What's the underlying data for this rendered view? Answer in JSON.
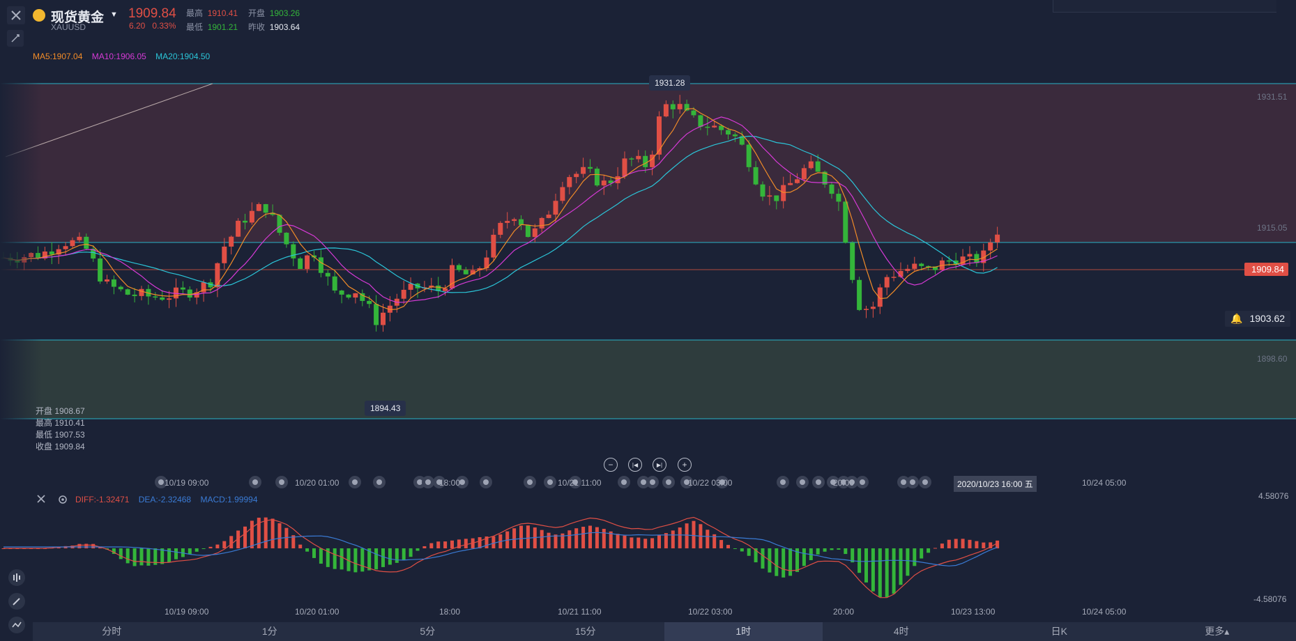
{
  "header": {
    "title": "现货黄金",
    "symbol": "XAUUSD",
    "price": "1909.84",
    "change": "6.20",
    "change_pct": "0.33%",
    "high_label": "最高",
    "high": "1910.41",
    "open_label": "开盘",
    "open": "1903.26",
    "low_label": "最低",
    "low": "1901.21",
    "prev_label": "昨收",
    "prev": "1903.64"
  },
  "ma": {
    "ma5": "MA5:1907.04",
    "ma10": "MA10:1906.05",
    "ma20": "MA20:1904.50",
    "colors": {
      "ma5": "#f28c28",
      "ma10": "#d63ad6",
      "ma20": "#2bc5d8"
    }
  },
  "main_axis": {
    "labels": [
      "1931.51",
      "1915.05",
      "1898.60"
    ]
  },
  "tags": {
    "last_price": "1909.84",
    "alert_price": "1903.62",
    "high_point": "1931.28",
    "low_point": "1894.43"
  },
  "ohlc_panel": {
    "open": "开盘 1908.67",
    "high": "最高 1910.41",
    "low": "最低 1907.53",
    "close": "收盘 1909.84"
  },
  "time_axis": {
    "main": [
      "10/19 09:00",
      "10/20 01:00",
      "18:00",
      "10/21 11:00",
      "10/22 03:00",
      "20:00",
      "10/24 05:00"
    ],
    "macd": [
      "10/19 09:00",
      "10/20 01:00",
      "18:00",
      "10/21 11:00",
      "10/22 03:00",
      "20:00",
      "10/23 13:00",
      "10/24 05:00"
    ],
    "crosshair": "2020/10/23 16:00 五"
  },
  "macd": {
    "diff": "DIFF:-1.32471",
    "dea": "DEA:-2.32468",
    "macd": "MACD:1.99994",
    "axis_top": "4.58076",
    "axis_bottom": "-4.58076",
    "colors": {
      "diff": "#e04f45",
      "dea": "#3a7bd5",
      "macd": "#3a7bd5"
    }
  },
  "tabs": [
    "分时",
    "1分",
    "5分",
    "15分",
    "1时",
    "4时",
    "日K",
    "更多▴"
  ],
  "active_tab": "1时",
  "colors": {
    "up": "#e04f45",
    "down": "#34b53a",
    "band_top": "#3a2a3c",
    "band_bottom": "#2e3c3d",
    "grid_line": "#2ab3c7"
  }
}
